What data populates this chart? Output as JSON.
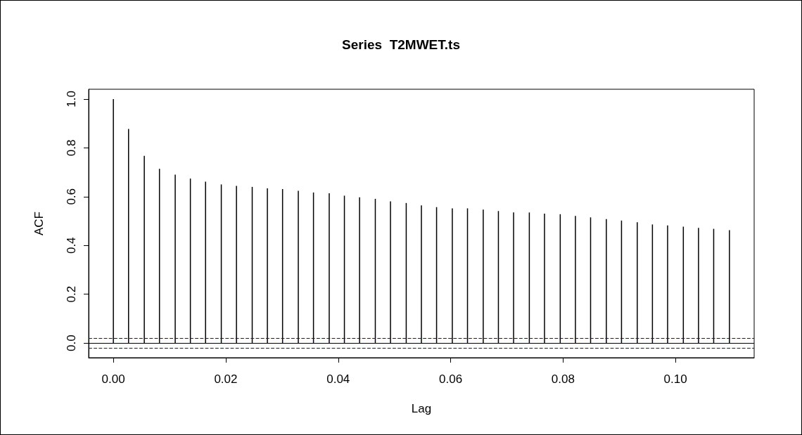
{
  "chart_data": {
    "type": "bar",
    "title": "Series  T2MWET.ts",
    "xlabel": "Lag",
    "ylabel": "ACF",
    "x": [
      0,
      0.0027,
      0.0055,
      0.0082,
      0.011,
      0.0137,
      0.0164,
      0.0192,
      0.0219,
      0.0247,
      0.0274,
      0.0301,
      0.0329,
      0.0356,
      0.0384,
      0.0411,
      0.0438,
      0.0466,
      0.0493,
      0.0521,
      0.0548,
      0.0575,
      0.0603,
      0.063,
      0.0658,
      0.0685,
      0.0712,
      0.074,
      0.0767,
      0.0795,
      0.0822,
      0.0849,
      0.0877,
      0.0904,
      0.0932,
      0.0959,
      0.0986,
      0.1014,
      0.1041,
      0.1068,
      0.1096
    ],
    "series": [
      {
        "color": "#000000",
        "values": [
          1.0,
          0.877,
          0.767,
          0.714,
          0.69,
          0.674,
          0.661,
          0.65,
          0.644,
          0.64,
          0.634,
          0.631,
          0.624,
          0.617,
          0.614,
          0.604,
          0.597,
          0.591,
          0.581,
          0.574,
          0.564,
          0.557,
          0.552,
          0.552,
          0.547,
          0.541,
          0.535,
          0.535,
          0.53,
          0.528,
          0.521,
          0.515,
          0.508,
          0.502,
          0.495,
          0.486,
          0.482,
          0.477,
          0.472,
          0.468,
          0.463
        ]
      }
    ],
    "xlim": [
      -0.0044,
      0.114
    ],
    "ylim": [
      -0.06,
      1.04
    ],
    "xticks": [
      {
        "value": 0,
        "label": "0.00"
      },
      {
        "value": 0.02,
        "label": "0.02"
      },
      {
        "value": 0.04,
        "label": "0.04"
      },
      {
        "value": 0.06,
        "label": "0.06"
      },
      {
        "value": 0.08,
        "label": "0.08"
      },
      {
        "value": 0.1,
        "label": "0.10"
      }
    ],
    "yticks": [
      {
        "value": 0,
        "label": "0.0"
      },
      {
        "value": 0.2,
        "label": "0.2"
      },
      {
        "value": 0.4,
        "label": "0.4"
      },
      {
        "value": 0.6,
        "label": "0.6"
      },
      {
        "value": 0.8,
        "label": "0.8"
      },
      {
        "value": 1,
        "label": "1.0"
      }
    ],
    "ref_lines": [
      {
        "axis": "y",
        "value": 0,
        "color": "#000000",
        "line_style": "solid"
      },
      {
        "axis": "y",
        "value": 0.018,
        "color": "#0000ff",
        "line_style": "dashed"
      },
      {
        "axis": "y",
        "value": -0.018,
        "color": "#0000ff",
        "line_style": "dashed"
      }
    ]
  }
}
